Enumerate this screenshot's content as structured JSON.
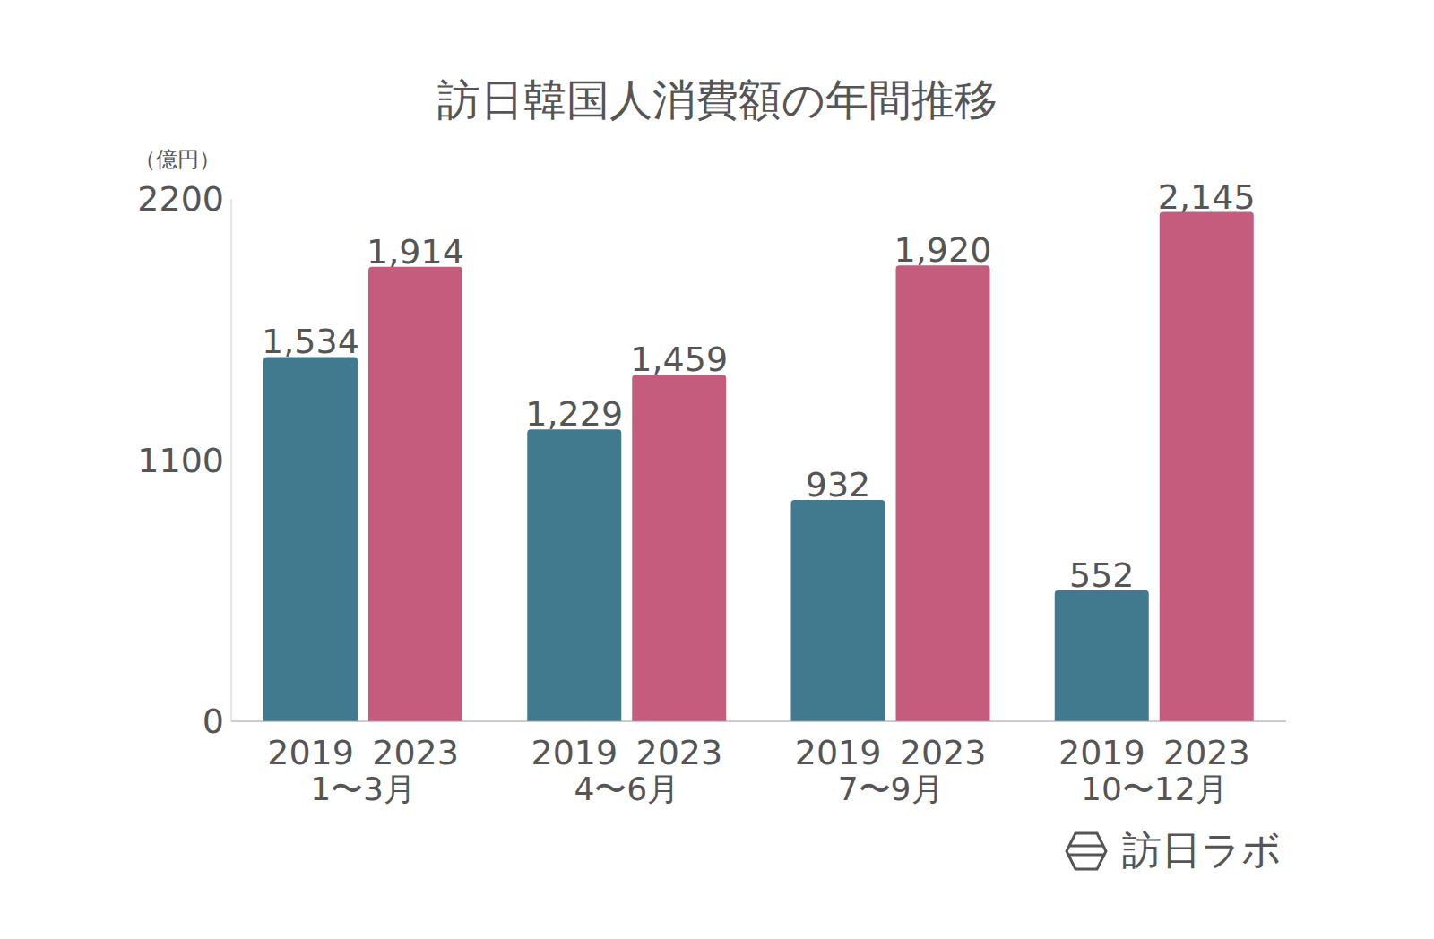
{
  "chart_data": {
    "type": "bar",
    "title": "訪日韓国人消費額の年間推移",
    "y_label": "（億円）",
    "categories": [
      "1〜3月",
      "4〜6月",
      "7〜9月",
      "10〜12月"
    ],
    "series": [
      {
        "name": "2019",
        "color": "#417a8f",
        "values": [
          1534,
          1229,
          932,
          552
        ],
        "value_labels": [
          "1,534",
          "1,229",
          "932",
          "552"
        ]
      },
      {
        "name": "2023",
        "color": "#c55c7e",
        "values": [
          1914,
          1459,
          1920,
          2145
        ],
        "value_labels": [
          "1,914",
          "1,459",
          "1,920",
          "2,145"
        ]
      }
    ],
    "ylim": [
      0,
      2200
    ],
    "yticks": [
      0,
      1100,
      2200
    ],
    "grid": false,
    "data_labels": true,
    "source": "訪日ラボ"
  }
}
